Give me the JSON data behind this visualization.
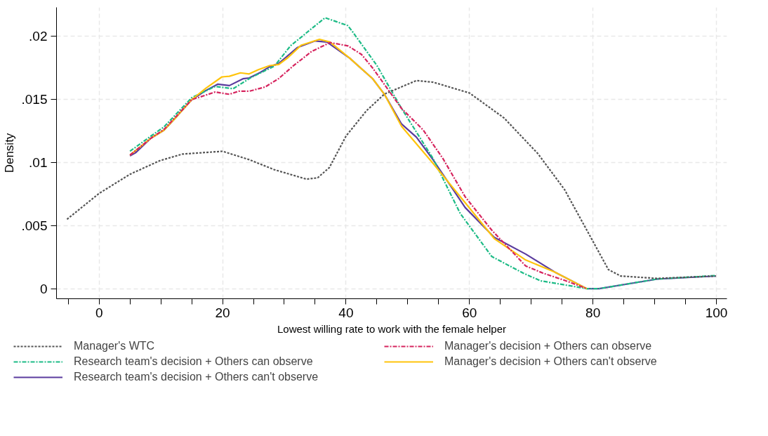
{
  "chart_data": {
    "type": "line",
    "xlabel": "Lowest willing rate to work with the female helper",
    "ylabel": "Density",
    "xlim": [
      -6.9,
      101.7
    ],
    "ylim": [
      -0.0008,
      0.0223
    ],
    "xticks": [
      {
        "value": -5,
        "label": null
      },
      0,
      {
        "value": 5,
        "label": null
      },
      {
        "value": 10,
        "label": null
      },
      {
        "value": 15,
        "label": null
      },
      20,
      {
        "value": 25,
        "label": null
      },
      {
        "value": 30,
        "label": null
      },
      {
        "value": 35,
        "label": null
      },
      40,
      {
        "value": 45,
        "label": null
      },
      {
        "value": 50,
        "label": null
      },
      {
        "value": 55,
        "label": null
      },
      60,
      {
        "value": 65,
        "label": null
      },
      {
        "value": 70,
        "label": null
      },
      {
        "value": 75,
        "label": null
      },
      80,
      {
        "value": 85,
        "label": null
      },
      {
        "value": 90,
        "label": null
      },
      {
        "value": 95,
        "label": null
      },
      100
    ],
    "yticks": [
      0,
      {
        "value": 0.005,
        "label": ".005"
      },
      {
        "value": 0.01,
        "label": ".01"
      },
      {
        "value": 0.015,
        "label": ".015"
      },
      {
        "value": 0.02,
        "label": ".02"
      }
    ],
    "grid": true,
    "legend": "bottom",
    "marker": "none",
    "series": [
      {
        "name": "Manager's WTC",
        "color": "#555555",
        "line_style": "dotted",
        "x": [
          -5.2,
          0,
          5,
          9.8,
          13.5,
          20,
          24.3,
          28.4,
          33.6,
          35.4,
          37.3,
          40,
          43.3,
          46.2,
          51.4,
          54.1,
          60,
          65.6,
          71.1,
          75.4,
          79,
          82.5,
          84.5,
          90.4,
          99.9
        ],
        "values": [
          0.0055,
          0.00755,
          0.00907,
          0.01014,
          0.01067,
          0.01089,
          0.01023,
          0.00943,
          0.00868,
          0.00879,
          0.0096,
          0.0121,
          0.0141,
          0.01542,
          0.0165,
          0.01637,
          0.01551,
          0.01353,
          0.01069,
          0.00785,
          0.00464,
          0.00151,
          0.001,
          0.00081,
          0.001
        ]
      },
      {
        "name": "Research team's decision + Others can observe",
        "color": "#1dbb86",
        "line_style": "dashdot",
        "x": [
          5,
          8.4,
          10.5,
          15,
          18.8,
          21.7,
          24.7,
          28.4,
          31,
          36.6,
          40.3,
          41.1,
          45,
          49,
          54.1,
          58.5,
          63.6,
          68.7,
          71.5,
          79,
          81,
          90.4,
          99.9
        ],
        "values": [
          0.01089,
          0.0121,
          0.01282,
          0.01514,
          0.01603,
          0.01585,
          0.01676,
          0.01764,
          0.01925,
          0.02148,
          0.02085,
          0.02034,
          0.01769,
          0.01428,
          0.01031,
          0.00596,
          0.00255,
          0.00123,
          0.00062,
          0,
          0,
          0.00076,
          0.00104
        ]
      },
      {
        "name": "Research team's decision + Others can't observe",
        "color": "#5b3c9e",
        "line_style": "solid",
        "x": [
          5,
          5.9,
          8.4,
          10.5,
          12.4,
          15,
          17.3,
          19.2,
          21.1,
          23.3,
          24.3,
          26.1,
          27.6,
          29.1,
          32.1,
          35,
          36.9,
          40.6,
          44.3,
          46.2,
          49,
          51.4,
          54.1,
          59.3,
          64,
          69.1,
          73.8,
          79,
          81,
          90.4,
          99.9
        ],
        "values": [
          0.01053,
          0.01077,
          0.01193,
          0.01256,
          0.01355,
          0.01498,
          0.01571,
          0.01621,
          0.0161,
          0.01664,
          0.0167,
          0.01714,
          0.01759,
          0.01786,
          0.01911,
          0.01964,
          0.01955,
          0.01827,
          0.01665,
          0.01542,
          0.01305,
          0.01201,
          0.01022,
          0.00643,
          0.00407,
          0.00274,
          0.00132,
          0,
          0,
          0.00076,
          0.001
        ]
      },
      {
        "name": "Manager's decision + Others can observe",
        "color": "#d6245e",
        "line_style": "dashdot",
        "x": [
          5,
          8.4,
          10.5,
          15,
          18.8,
          21.1,
          22.6,
          24.3,
          26.9,
          29.1,
          31.4,
          34.4,
          37.4,
          40.3,
          42.5,
          44.3,
          49,
          52.5,
          55.7,
          59.3,
          63.6,
          69.1,
          71.9,
          75.4,
          79
        ],
        "values": [
          0.01059,
          0.01193,
          0.01262,
          0.01498,
          0.01559,
          0.01541,
          0.01565,
          0.01565,
          0.01599,
          0.01666,
          0.01764,
          0.0188,
          0.01951,
          0.01925,
          0.01857,
          0.0175,
          0.01428,
          0.01258,
          0.01031,
          0.00728,
          0.00464,
          0.0018,
          0.00123,
          0.00066,
          0
        ]
      },
      {
        "name": "Manager's decision + Others can't observe",
        "color": "#ffc40c",
        "line_style": "solid",
        "x": [
          5,
          8.4,
          10.5,
          12.4,
          15,
          17.3,
          19.9,
          21.1,
          22.9,
          24.3,
          25.8,
          27.6,
          29.1,
          30.6,
          32.7,
          35.7,
          37.4,
          40.6,
          44.3,
          46.2,
          49,
          54.1,
          59.3,
          64,
          69.1,
          73.8,
          79
        ],
        "values": [
          0.01059,
          0.01193,
          0.01256,
          0.01355,
          0.01498,
          0.01589,
          0.01679,
          0.01684,
          0.01711,
          0.01702,
          0.01736,
          0.01768,
          0.01777,
          0.01832,
          0.01929,
          0.01977,
          0.01955,
          0.01827,
          0.01665,
          0.01542,
          0.01287,
          0.00993,
          0.00681,
          0.00397,
          0.00227,
          0.00132,
          0
        ]
      }
    ]
  }
}
